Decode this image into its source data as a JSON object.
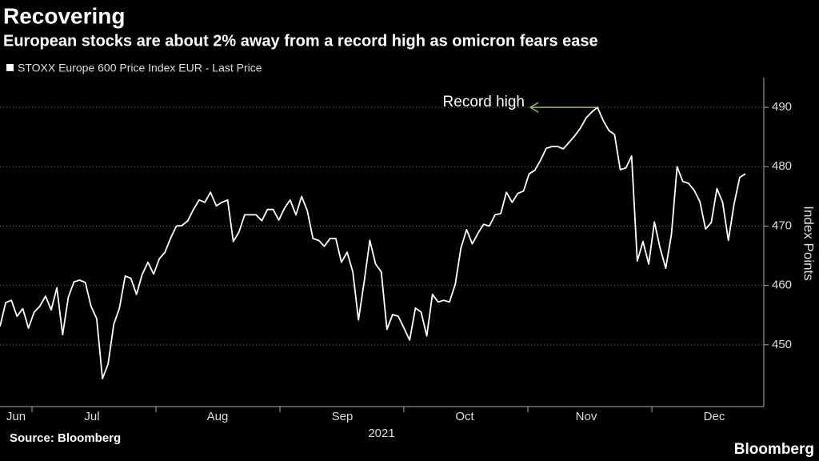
{
  "chart_data": {
    "type": "line",
    "title": "Recovering",
    "subtitle": "European stocks are about 2% away from a record high as omicron fears ease",
    "x_labels": [
      "Jun",
      "Jul",
      "Aug",
      "Sep",
      "Oct",
      "Nov",
      "Dec"
    ],
    "x_year": "2021",
    "y_label": "Index Points",
    "source": "Source: Bloomberg",
    "brand": "Bloomberg",
    "annotation": "Record high",
    "annotation_color": "#8ac43f",
    "ylim": [
      440,
      495
    ],
    "yticks": [
      450,
      460,
      470,
      480,
      490
    ],
    "grid": true,
    "series": [
      {
        "name": "STOXX Europe 600 Price Index EUR - Last Price",
        "color": "#ffffff",
        "values": [
          453.1,
          457.1,
          457.5,
          454.8,
          456.1,
          452.8,
          455.5,
          456.5,
          458.2,
          455.9,
          459.6,
          451.7,
          458.0,
          460.6,
          460.9,
          460.5,
          456.5,
          454.4,
          444.3,
          446.8,
          453.5,
          456.2,
          461.6,
          461.2,
          458.5,
          461.9,
          463.9,
          461.9,
          464.5,
          465.6,
          468.0,
          470.0,
          470.1,
          470.9,
          472.8,
          474.4,
          474.0,
          475.7,
          473.4,
          474.0,
          474.4,
          467.4,
          469.0,
          471.9,
          471.9,
          471.9,
          470.9,
          472.8,
          472.8,
          471.0,
          473.0,
          474.4,
          471.9,
          475.0,
          472.6,
          467.9,
          467.6,
          466.6,
          467.9,
          467.9,
          463.9,
          465.6,
          462.3,
          454.2,
          460.6,
          467.6,
          463.6,
          462.3,
          452.6,
          455.1,
          454.8,
          452.8,
          450.8,
          456.2,
          455.5,
          451.5,
          458.5,
          457.2,
          457.5,
          457.2,
          460.2,
          466.3,
          469.4,
          467.0,
          468.8,
          470.3,
          470.0,
          471.9,
          472.1,
          475.7,
          474.0,
          475.5,
          475.9,
          478.8,
          479.4,
          481.1,
          483.1,
          483.4,
          483.4,
          483.0,
          484.1,
          485.2,
          486.5,
          488.2,
          489.2,
          490.0,
          487.8,
          486.1,
          485.4,
          479.5,
          479.8,
          481.8,
          464.1,
          467.4,
          463.6,
          470.7,
          466.3,
          462.9,
          468.6,
          480.0,
          477.5,
          477.2,
          476.0,
          474.1,
          469.5,
          470.6,
          476.3,
          474.0,
          467.6,
          473.7,
          478.2,
          478.8
        ]
      }
    ]
  }
}
